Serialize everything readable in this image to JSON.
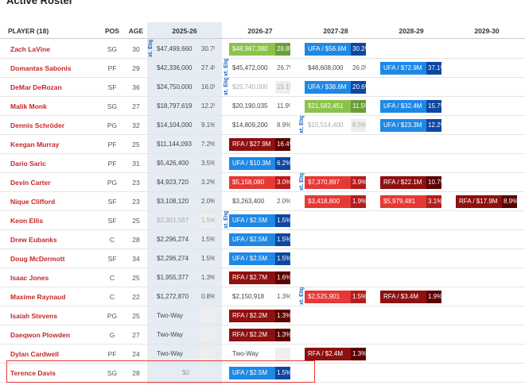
{
  "title": "Active Roster",
  "table": {
    "headers": [
      "PLAYER (18)",
      "POS",
      "AGE",
      "2025-26",
      "2026-27",
      "2027-28",
      "2028-29",
      "2029-30"
    ],
    "rows": [
      {
        "player": "Zach LaVine",
        "pos": "SG",
        "age": "30",
        "cells": [
          {
            "text": "$47,499,660",
            "pct": "30.7%",
            "style": "plain",
            "note": "xt. Elig."
          },
          {
            "text": "$48,967,380",
            "pct": "28.8%",
            "style": "green"
          },
          {
            "text": "UFA / $56.6M",
            "pct": "30.2%",
            "style": "blue"
          },
          null,
          null
        ]
      },
      {
        "player": "Domantas Sabonis",
        "pos": "PF",
        "age": "29",
        "cells": [
          {
            "text": "$42,336,000",
            "pct": "27.4%",
            "style": "plain"
          },
          {
            "text": "$45,472,000",
            "pct": "26.7%",
            "style": "plain",
            "note": "xt. Elig."
          },
          {
            "text": "$48,608,000",
            "pct": "26.0%",
            "style": "plain"
          },
          {
            "text": "UFA / $72.9M",
            "pct": "37.1%",
            "style": "blue"
          },
          null
        ]
      },
      {
        "player": "DeMar DeRozan",
        "pos": "SF",
        "age": "36",
        "cells": [
          {
            "text": "$24,750,000",
            "pct": "16.0%",
            "style": "plain"
          },
          {
            "text": "$25,740,000",
            "pct": "15.1%",
            "style": "gray",
            "note": "xt. Elig."
          },
          {
            "text": "UFA / $38.6M",
            "pct": "20.6%",
            "style": "blue"
          },
          null,
          null
        ]
      },
      {
        "player": "Malik Monk",
        "pos": "SG",
        "age": "27",
        "cells": [
          {
            "text": "$18,797,619",
            "pct": "12.2%",
            "style": "plain"
          },
          {
            "text": "$20,190,035",
            "pct": "11.9%",
            "style": "plain"
          },
          {
            "text": "$21,582,451",
            "pct": "11.5%",
            "style": "green"
          },
          {
            "text": "UFA / $32.4M",
            "pct": "15.7%",
            "style": "blue"
          },
          null
        ]
      },
      {
        "player": "Dennis Schröder",
        "pos": "PG",
        "age": "32",
        "cells": [
          {
            "text": "$14,104,000",
            "pct": "9.1%",
            "style": "plain"
          },
          {
            "text": "$14,809,200",
            "pct": "8.9%",
            "style": "plain"
          },
          {
            "text": "$15,514,400",
            "pct": "8.5%",
            "style": "gray",
            "note": "xt. Elig."
          },
          {
            "text": "UFA / $23.3M",
            "pct": "12.2%",
            "style": "blue"
          },
          null
        ]
      },
      {
        "player": "Keegan Murray",
        "pos": "PF",
        "age": "25",
        "cells": [
          {
            "text": "$11,144,093",
            "pct": "7.2%",
            "style": "plain"
          },
          {
            "text": "RFA / $27.9M",
            "pct": "16.4%",
            "style": "darkred"
          },
          null,
          null,
          null
        ]
      },
      {
        "player": "Dario Saric",
        "pos": "PF",
        "age": "31",
        "cells": [
          {
            "text": "$5,426,400",
            "pct": "3.5%",
            "style": "plain"
          },
          {
            "text": "UFA / $10.3M",
            "pct": "6.2%",
            "style": "blue"
          },
          null,
          null,
          null
        ]
      },
      {
        "player": "Devin Carter",
        "pos": "PG",
        "age": "23",
        "cells": [
          {
            "text": "$4,923,720",
            "pct": "3.2%",
            "style": "plain"
          },
          {
            "text": "$5,158,080",
            "pct": "3.0%",
            "style": "red"
          },
          {
            "text": "$7,370,897",
            "pct": "3.9%",
            "style": "red",
            "note": "xt. Elig."
          },
          {
            "text": "RFA / $22.1M",
            "pct": "10.7%",
            "style": "darkred"
          },
          null
        ]
      },
      {
        "player": "Nique Clifford",
        "pos": "SF",
        "age": "23",
        "cells": [
          {
            "text": "$3,108,120",
            "pct": "2.0%",
            "style": "plain"
          },
          {
            "text": "$3,263,400",
            "pct": "2.0%",
            "style": "plain"
          },
          {
            "text": "$3,418,800",
            "pct": "1.9%",
            "style": "red"
          },
          {
            "text": "$5,979,481",
            "pct": "3.1%",
            "style": "red"
          },
          {
            "text": "RFA / $17.9M",
            "pct": "8.9%",
            "style": "darkred"
          }
        ]
      },
      {
        "player": "Keon Ellis",
        "pos": "SF",
        "age": "25",
        "cells": [
          {
            "text": "$2,301,587",
            "pct": "1.5%",
            "style": "gray"
          },
          {
            "text": "UFA / $2.5M",
            "pct": "1.5%",
            "style": "blue",
            "note": "xt. Elig."
          },
          null,
          null,
          null
        ]
      },
      {
        "player": "Drew Eubanks",
        "pos": "C",
        "age": "28",
        "cells": [
          {
            "text": "$2,296,274",
            "pct": "1.5%",
            "style": "plain"
          },
          {
            "text": "UFA / $2.5M",
            "pct": "1.5%",
            "style": "blue"
          },
          null,
          null,
          null
        ]
      },
      {
        "player": "Doug McDermott",
        "pos": "SF",
        "age": "34",
        "cells": [
          {
            "text": "$2,296,274",
            "pct": "1.5%",
            "style": "plain"
          },
          {
            "text": "UFA / $2.5M",
            "pct": "1.5%",
            "style": "blue"
          },
          null,
          null,
          null
        ]
      },
      {
        "player": "Isaac Jones",
        "pos": "C",
        "age": "25",
        "cells": [
          {
            "text": "$1,955,377",
            "pct": "1.3%",
            "style": "plain"
          },
          {
            "text": "RFA / $2.7M",
            "pct": "1.6%",
            "style": "darkred"
          },
          null,
          null,
          null
        ]
      },
      {
        "player": "Maxime Raynaud",
        "pos": "C",
        "age": "22",
        "cells": [
          {
            "text": "$1,272,870",
            "pct": "0.8%",
            "style": "plain"
          },
          {
            "text": "$2,150,918",
            "pct": "1.3%",
            "style": "plain"
          },
          {
            "text": "$2,525,901",
            "pct": "1.5%",
            "style": "red",
            "note": "xt. Elig."
          },
          {
            "text": "RFA / $3.4M",
            "pct": "1.9%",
            "style": "darkred"
          },
          null
        ]
      },
      {
        "player": "Isaiah Stevens",
        "pos": "PG",
        "age": "25",
        "cells": [
          {
            "text": "Two-Way",
            "style": "twoway"
          },
          {
            "text": "RFA / $2.2M",
            "pct": "1.3%",
            "style": "darkred"
          },
          null,
          null,
          null
        ]
      },
      {
        "player": "Daeqwon Plowden",
        "pos": "G",
        "age": "27",
        "cells": [
          {
            "text": "Two-Way",
            "style": "twoway"
          },
          {
            "text": "RFA / $2.2M",
            "pct": "1.3%",
            "style": "darkred"
          },
          null,
          null,
          null
        ]
      },
      {
        "player": "Dylan Cardwell",
        "pos": "PF",
        "age": "24",
        "cells": [
          {
            "text": "Two-Way",
            "style": "twoway"
          },
          {
            "text": "Two-Way",
            "style": "twoway"
          },
          {
            "text": "RFA / $2.4M",
            "pct": "1.3%",
            "style": "darkred"
          },
          null,
          null
        ]
      },
      {
        "player": "Terence Davis",
        "pos": "SG",
        "age": "28",
        "highlight": true,
        "cells": [
          {
            "text": "$0",
            "style": "zero"
          },
          {
            "text": "UFA / $2.5M",
            "pct": "1.5%",
            "style": "blue"
          },
          null,
          null,
          null
        ]
      }
    ]
  }
}
